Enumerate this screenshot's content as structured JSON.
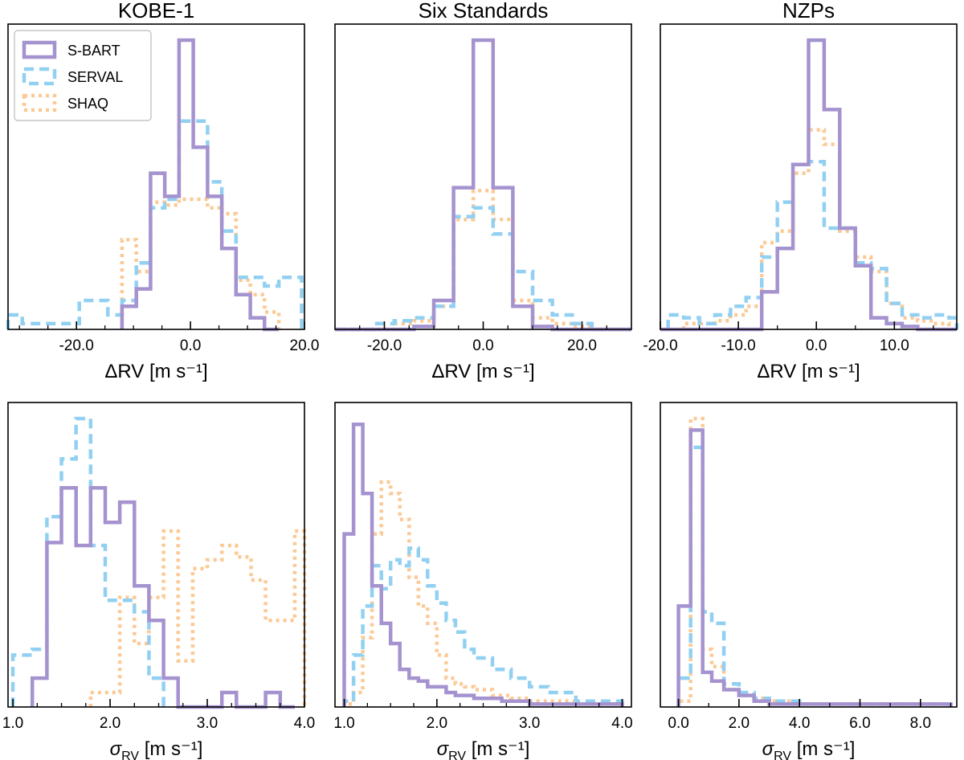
{
  "colors": {
    "sbart": "#a593cf",
    "serval": "#92d0f2",
    "shaq": "#fcc995",
    "axes": "#000000"
  },
  "legend": [
    {
      "name": "S-BART",
      "style": "solid"
    },
    {
      "name": "SERVAL",
      "style": "dashed"
    },
    {
      "name": "SHAQ",
      "style": "dotted"
    }
  ],
  "chart_data": [
    {
      "type": "histogram-step",
      "title": "KOBE-1",
      "xlabel": "ΔRV [m s⁻¹]",
      "xlim": [
        -32,
        20
      ],
      "ylim": [
        0,
        1.0
      ],
      "xticks": [
        -20,
        0,
        20
      ],
      "xtick_labels": [
        "-20.0",
        "0.0",
        "20.0"
      ],
      "xminor": [
        -30,
        -25,
        -15,
        -10,
        -5,
        5,
        10,
        15
      ],
      "series": [
        {
          "name": "S-BART",
          "edges": [
            -12,
            -9.5,
            -7,
            -4.5,
            -2,
            0.5,
            3,
            5.5,
            8,
            10.5,
            13,
            15.5
          ],
          "values": [
            0.08,
            0.14,
            0.54,
            0.46,
            1.0,
            0.63,
            0.46,
            0.28,
            0.12,
            0.04,
            0.0
          ]
        },
        {
          "name": "SERVAL",
          "edges": [
            -32,
            -29.5,
            -27,
            -24.5,
            -22,
            -19.5,
            -17,
            -14.5,
            -12,
            -9.5,
            -7,
            -4.5,
            -2,
            0.5,
            3,
            5.5,
            8,
            10.5,
            13,
            15.5,
            18,
            19.5
          ],
          "values": [
            0.05,
            0.02,
            0.02,
            0.02,
            0.02,
            0.1,
            0.1,
            0.05,
            0.1,
            0.23,
            0.42,
            0.45,
            0.72,
            0.72,
            0.51,
            0.34,
            0.18,
            0.18,
            0.15,
            0.18,
            0.18
          ]
        },
        {
          "name": "SHAQ",
          "edges": [
            -12,
            -9.5,
            -7,
            -4.5,
            -2,
            0.5,
            3,
            5.5,
            8,
            10.5,
            13,
            15.5
          ],
          "values": [
            0.31,
            0.2,
            0.44,
            0.43,
            0.45,
            0.45,
            0.42,
            0.4,
            0.17,
            0.12,
            0.06
          ]
        }
      ]
    },
    {
      "type": "histogram-step",
      "title": "Six Standards",
      "xlabel": "ΔRV [m s⁻¹]",
      "xlim": [
        -30,
        30
      ],
      "ylim": [
        0,
        1.0
      ],
      "xticks": [
        -20,
        0,
        20
      ],
      "xtick_labels": [
        "-20.0",
        "0.0",
        "20.0"
      ],
      "xminor": [
        -25,
        -15,
        -10,
        -5,
        5,
        10,
        15,
        25
      ],
      "series": [
        {
          "name": "S-BART",
          "edges": [
            -30,
            -14,
            -10,
            -6,
            -2,
            2,
            6,
            10,
            14,
            30
          ],
          "values": [
            0.0,
            0.01,
            0.1,
            0.49,
            1.0,
            0.49,
            0.08,
            0.01,
            0.0
          ]
        },
        {
          "name": "SERVAL",
          "edges": [
            -30,
            -22,
            -18,
            -14,
            -10,
            -6,
            -2,
            2,
            6,
            10,
            14,
            18,
            22,
            30
          ],
          "values": [
            0.0,
            0.02,
            0.03,
            0.04,
            0.08,
            0.39,
            0.42,
            0.33,
            0.2,
            0.1,
            0.05,
            0.02,
            0.0
          ]
        },
        {
          "name": "SHAQ",
          "edges": [
            -30,
            -18,
            -14,
            -10,
            -6,
            -2,
            2,
            6,
            10,
            14,
            18,
            22,
            30
          ],
          "values": [
            0.0,
            0.02,
            0.03,
            0.08,
            0.38,
            0.48,
            0.38,
            0.1,
            0.04,
            0.02,
            0.01,
            0.0
          ]
        }
      ]
    },
    {
      "type": "histogram-step",
      "title": "NZPs",
      "xlabel": "ΔRV [m s⁻¹]",
      "xlim": [
        -20,
        18
      ],
      "ylim": [
        0,
        1.0
      ],
      "xticks": [
        -20,
        -10,
        0,
        10
      ],
      "xtick_labels": [
        "-20.0",
        "-10.0",
        "0.0",
        "10.0"
      ],
      "xminor": [
        -15,
        -5,
        5,
        15
      ],
      "series": [
        {
          "name": "S-BART",
          "edges": [
            -20,
            -7,
            -5,
            -3,
            -1,
            1,
            3,
            5,
            7,
            9,
            11,
            13,
            18
          ],
          "values": [
            0.0,
            0.13,
            0.28,
            0.57,
            1.0,
            0.76,
            0.35,
            0.22,
            0.04,
            0.02,
            0.01,
            0.0
          ]
        },
        {
          "name": "SERVAL",
          "edges": [
            -19,
            -17,
            -15,
            -13,
            -11,
            -9,
            -7,
            -5,
            -3,
            -1,
            1,
            3,
            5,
            7,
            9,
            11,
            13,
            15,
            17,
            18
          ],
          "values": [
            0.05,
            0.04,
            0.02,
            0.05,
            0.08,
            0.11,
            0.25,
            0.44,
            0.57,
            0.58,
            0.35,
            0.35,
            0.23,
            0.21,
            0.09,
            0.05,
            0.04,
            0.05,
            0.04
          ]
        },
        {
          "name": "SHAQ",
          "edges": [
            -17,
            -15,
            -13,
            -11,
            -9,
            -7,
            -5,
            -3,
            -1,
            1,
            3,
            5,
            7,
            9,
            11,
            13,
            15,
            17
          ],
          "values": [
            0.02,
            0.02,
            0.03,
            0.05,
            0.08,
            0.3,
            0.34,
            0.54,
            0.69,
            0.64,
            0.34,
            0.25,
            0.2,
            0.09,
            0.04,
            0.03,
            0.02
          ]
        }
      ]
    },
    {
      "type": "histogram-step",
      "title": "",
      "xlabel": "σRV [m s⁻¹]",
      "xlim": [
        0.95,
        4.0
      ],
      "ylim": [
        0,
        1.0
      ],
      "xticks": [
        1,
        2,
        3,
        4
      ],
      "xtick_labels": [
        "1.0",
        "2.0",
        "3.0",
        "4.0"
      ],
      "xminor": [
        1.25,
        1.5,
        1.75,
        2.25,
        2.5,
        2.75,
        3.25,
        3.5,
        3.75
      ],
      "series": [
        {
          "name": "S-BART",
          "edges": [
            1.2,
            1.35,
            1.5,
            1.65,
            1.8,
            1.95,
            2.1,
            2.25,
            2.4,
            2.55,
            2.7,
            2.85,
            3.0,
            3.15,
            3.3,
            3.45,
            3.6,
            3.75,
            3.9
          ],
          "values": [
            0.1,
            0.57,
            0.76,
            0.56,
            0.76,
            0.64,
            0.71,
            0.42,
            0.3,
            0.1,
            0.0,
            0.0,
            0.0,
            0.05,
            0.0,
            0.0,
            0.05,
            0.0
          ]
        },
        {
          "name": "SERVAL",
          "edges": [
            1.0,
            1.2,
            1.35,
            1.5,
            1.65,
            1.8,
            1.95,
            2.1,
            2.25,
            2.4,
            2.55
          ],
          "values": [
            0.18,
            0.2,
            0.66,
            0.86,
            1.0,
            0.56,
            0.37,
            0.37,
            0.33,
            0.1
          ]
        },
        {
          "name": "SHAQ",
          "edges": [
            1.8,
            2.1,
            2.25,
            2.4,
            2.55,
            2.7,
            2.85,
            3.0,
            3.15,
            3.3,
            3.45,
            3.6,
            3.75,
            3.9,
            4.0
          ],
          "values": [
            0.05,
            0.38,
            0.22,
            0.38,
            0.61,
            0.16,
            0.48,
            0.51,
            0.56,
            0.52,
            0.44,
            0.3,
            0.3,
            0.61
          ]
        }
      ]
    },
    {
      "type": "histogram-step",
      "title": "",
      "xlabel": "σRV [m s⁻¹]",
      "xlim": [
        0.9,
        4.1
      ],
      "ylim": [
        0,
        1.0
      ],
      "xticks": [
        1,
        2,
        3,
        4
      ],
      "xtick_labels": [
        "1.0",
        "2.0",
        "3.0",
        "4.0"
      ],
      "xminor": [
        1.25,
        1.5,
        1.75,
        2.25,
        2.5,
        2.75,
        3.25,
        3.5,
        3.75
      ],
      "series": [
        {
          "name": "S-BART",
          "edges": [
            1.0,
            1.1,
            1.2,
            1.3,
            1.4,
            1.5,
            1.6,
            1.7,
            1.8,
            1.9,
            2.0,
            2.1,
            2.2,
            2.3,
            2.4,
            2.5,
            2.7,
            3.0,
            3.5,
            4.0
          ],
          "values": [
            0.6,
            0.98,
            0.74,
            0.42,
            0.29,
            0.22,
            0.13,
            0.1,
            0.09,
            0.07,
            0.07,
            0.05,
            0.04,
            0.04,
            0.03,
            0.03,
            0.02,
            0.01,
            0.01
          ]
        },
        {
          "name": "SERVAL",
          "edges": [
            1.0,
            1.1,
            1.2,
            1.3,
            1.4,
            1.5,
            1.6,
            1.7,
            1.8,
            1.9,
            2.0,
            2.1,
            2.2,
            2.3,
            2.4,
            2.6,
            2.8,
            3.0,
            3.2,
            3.5,
            4.0
          ],
          "values": [
            0.02,
            0.18,
            0.35,
            0.49,
            0.41,
            0.51,
            0.49,
            0.55,
            0.51,
            0.42,
            0.36,
            0.3,
            0.26,
            0.2,
            0.17,
            0.13,
            0.1,
            0.07,
            0.05,
            0.02
          ]
        },
        {
          "name": "SHAQ",
          "edges": [
            1.0,
            1.1,
            1.2,
            1.3,
            1.4,
            1.5,
            1.6,
            1.7,
            1.8,
            1.9,
            2.0,
            2.1,
            2.2,
            2.3,
            2.4,
            2.6,
            2.8,
            3.0,
            3.5,
            4.0
          ],
          "values": [
            0.01,
            0.05,
            0.24,
            0.6,
            0.78,
            0.74,
            0.65,
            0.45,
            0.35,
            0.29,
            0.18,
            0.1,
            0.08,
            0.07,
            0.06,
            0.04,
            0.03,
            0.02,
            0.01
          ]
        }
      ]
    },
    {
      "type": "histogram-step",
      "title": "",
      "xlabel": "σRV [m s⁻¹]",
      "xlim": [
        -0.6,
        9.2
      ],
      "ylim": [
        0,
        1.0
      ],
      "xticks": [
        0,
        2,
        4,
        6,
        8
      ],
      "xtick_labels": [
        "0.0",
        "2.0",
        "4.0",
        "6.0",
        "8.0"
      ],
      "xminor": [
        1,
        3,
        5,
        7,
        9
      ],
      "series": [
        {
          "name": "S-BART",
          "edges": [
            0.0,
            0.4,
            0.8,
            1.1,
            1.5,
            2.0,
            2.5,
            3.0,
            4.0,
            6.0,
            9.0
          ],
          "values": [
            0.35,
            0.96,
            0.12,
            0.09,
            0.06,
            0.04,
            0.02,
            0.01,
            0.01,
            0.01
          ]
        },
        {
          "name": "SERVAL",
          "edges": [
            0.0,
            0.4,
            0.8,
            1.1,
            1.5,
            2.0,
            2.5,
            3.0,
            4.0,
            6.0,
            9.0
          ],
          "values": [
            0.1,
            0.9,
            0.33,
            0.29,
            0.08,
            0.05,
            0.03,
            0.02,
            0.01,
            0.01
          ]
        },
        {
          "name": "SHAQ",
          "edges": [
            0.0,
            0.4,
            0.8,
            1.1,
            1.5,
            2.0,
            2.5,
            3.0,
            4.0,
            6.0,
            9.0
          ],
          "values": [
            0.02,
            1.0,
            0.2,
            0.14,
            0.06,
            0.04,
            0.03,
            0.02,
            0.01,
            0.01
          ]
        }
      ]
    }
  ]
}
